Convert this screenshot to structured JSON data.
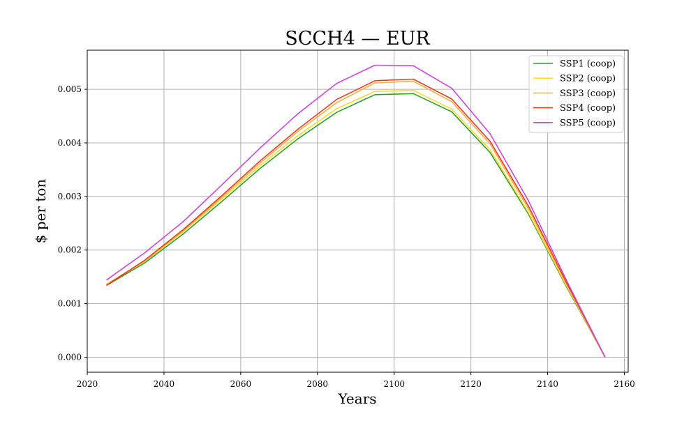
{
  "chart_data": {
    "type": "line",
    "title": "SCCH4 — EUR",
    "xlabel": "Years",
    "ylabel": "$ per ton",
    "xlim": [
      2020,
      2161
    ],
    "ylim": [
      -0.00028,
      0.00573
    ],
    "x_ticks": [
      2020,
      2040,
      2060,
      2080,
      2100,
      2120,
      2140,
      2160
    ],
    "y_ticks": [
      0.0,
      0.001,
      0.002,
      0.003,
      0.004,
      0.005
    ],
    "y_tick_labels": [
      "0.000",
      "0.001",
      "0.002",
      "0.003",
      "0.004",
      "0.005"
    ],
    "grid": true,
    "legend_position": "top-right",
    "x": [
      2025,
      2035,
      2045,
      2055,
      2065,
      2075,
      2085,
      2095,
      2105,
      2115,
      2125,
      2135,
      2145,
      2155
    ],
    "series": [
      {
        "name": "SSP1 (coop)",
        "color": "#2ca02c",
        "values": [
          0.00134,
          0.00176,
          0.0023,
          0.0029,
          0.00352,
          0.00408,
          0.00457,
          0.0049,
          0.00492,
          0.00458,
          0.00382,
          0.00267,
          0.0013,
          0.0
        ]
      },
      {
        "name": "SSP2 (coop)",
        "color": "#ffd92f",
        "values": [
          0.00136,
          0.00179,
          0.00234,
          0.00295,
          0.00357,
          0.00414,
          0.00464,
          0.00496,
          0.00498,
          0.00463,
          0.00387,
          0.0027,
          0.00132,
          0.0
        ]
      },
      {
        "name": "SSP3 (coop)",
        "color": "#f5b041",
        "values": [
          0.00136,
          0.0018,
          0.00236,
          0.00298,
          0.00362,
          0.00422,
          0.00475,
          0.00512,
          0.00515,
          0.00477,
          0.00398,
          0.00277,
          0.00135,
          0.0
        ]
      },
      {
        "name": "SSP4 (coop)",
        "color": "#f03b20",
        "values": [
          0.00134,
          0.00181,
          0.00238,
          0.00301,
          0.00366,
          0.00426,
          0.00481,
          0.00516,
          0.00519,
          0.00482,
          0.00403,
          0.00282,
          0.00138,
          0.0
        ]
      },
      {
        "name": "SSP5 (coop)",
        "color": "#cc44dd",
        "values": [
          0.00144,
          0.00195,
          0.00253,
          0.00321,
          0.0039,
          0.00455,
          0.00511,
          0.00545,
          0.00544,
          0.00502,
          0.00417,
          0.00292,
          0.00142,
          0.0
        ]
      }
    ]
  }
}
